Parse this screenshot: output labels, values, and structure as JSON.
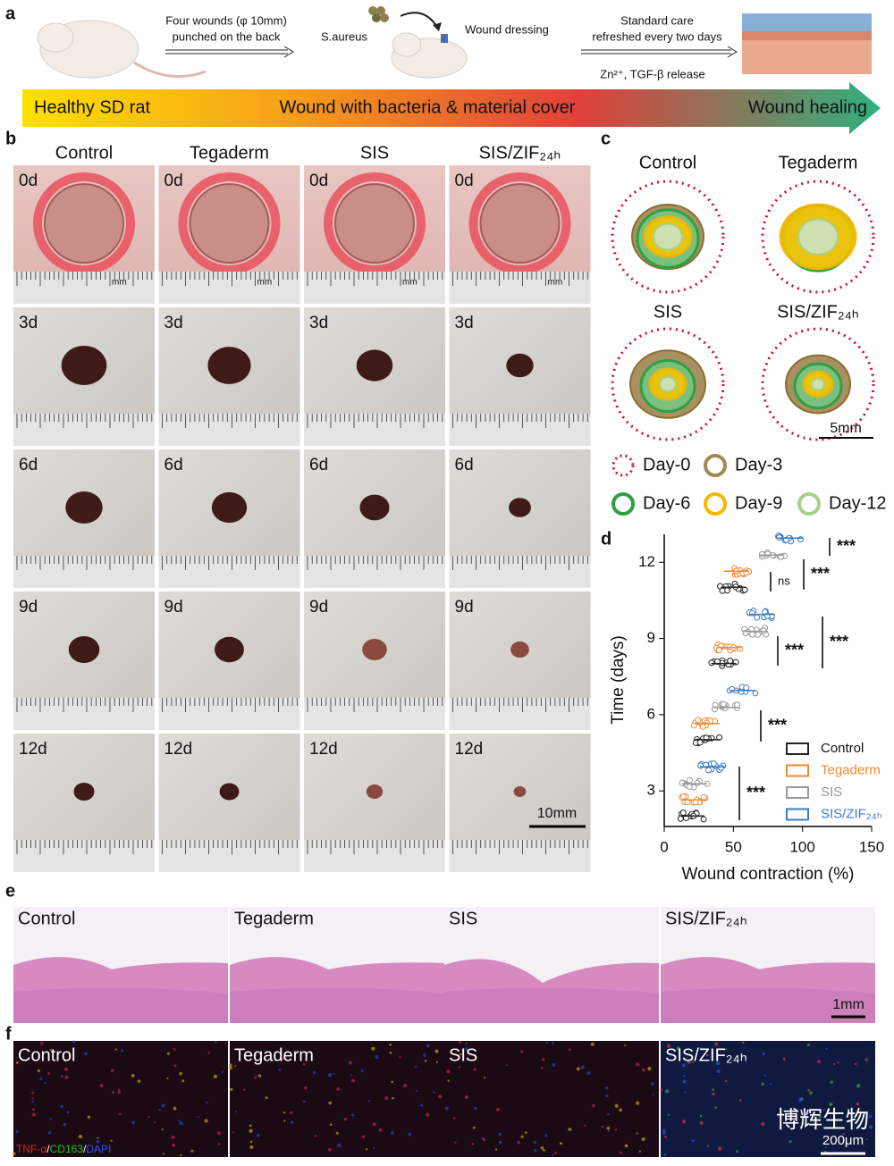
{
  "panel_a": {
    "label": "a",
    "step1": [
      "Four wounds (φ 10mm)",
      "punched on the back"
    ],
    "bacteria": "S.aureus",
    "step2": "Wound dressing",
    "step3": [
      "Standard care",
      "refreshed every two days"
    ],
    "release": "Zn²⁺, TGF-β release",
    "stages": [
      "Healthy SD rat",
      "Wound with bacteria & material cover",
      "Wound healing"
    ]
  },
  "panel_b": {
    "label": "b",
    "groups": [
      "Control",
      "Tegaderm",
      "SIS",
      "SIS/ZIF₂₄ₕ"
    ],
    "days": [
      "0d",
      "3d",
      "6d",
      "9d",
      "12d"
    ],
    "ruler_unit": "mm",
    "scale_bar": "10mm"
  },
  "panel_c": {
    "label": "c",
    "groups": [
      "Control",
      "Tegaderm",
      "SIS",
      "SIS/ZIF₂₄ₕ"
    ],
    "legend": [
      "Day-0",
      "Day-3",
      "Day-6",
      "Day-9",
      "Day-12"
    ],
    "scale_bar": "5mm"
  },
  "chart_data": {
    "type": "dot",
    "label": "d",
    "ylabel": "Time (days)",
    "xlabel": "Wound contraction (%)",
    "y": [
      3,
      6,
      9,
      12
    ],
    "series": [
      {
        "name": "Control",
        "color": "#222222",
        "values": [
          20,
          31,
          43,
          50
        ]
      },
      {
        "name": "Tegaderm",
        "color": "#f08a30",
        "values": [
          22,
          31,
          47,
          52
        ]
      },
      {
        "name": "SIS",
        "color": "#999999",
        "values": [
          22,
          45,
          66,
          78
        ]
      },
      {
        "name": "SIS/ZIF₂₄ₕ",
        "color": "#3a7cc8",
        "values": [
          35,
          57,
          71,
          91
        ]
      }
    ],
    "xlim": [
      0,
      150
    ],
    "xticks": [
      0,
      50,
      100,
      150
    ],
    "ylim": [
      1.6,
      13.1
    ],
    "yticks": [
      3,
      6,
      9,
      12
    ],
    "legend_position": "lower right",
    "significance": [
      "***",
      "***",
      "ns",
      "***",
      "***",
      "***",
      "***"
    ]
  },
  "panel_e": {
    "label": "e",
    "groups": [
      "Control",
      "Tegaderm",
      "SIS",
      "SIS/ZIF₂₄ₕ"
    ],
    "scale_bar": "1mm"
  },
  "panel_f": {
    "label": "f",
    "groups": [
      "Control",
      "Tegaderm",
      "SIS",
      "SIS/ZIF₂₄ₕ"
    ],
    "stain": [
      "TNF-α",
      "/",
      "CD163",
      "/",
      "DAPI"
    ],
    "scale_bar": "200μm",
    "watermark": "博辉生物"
  }
}
